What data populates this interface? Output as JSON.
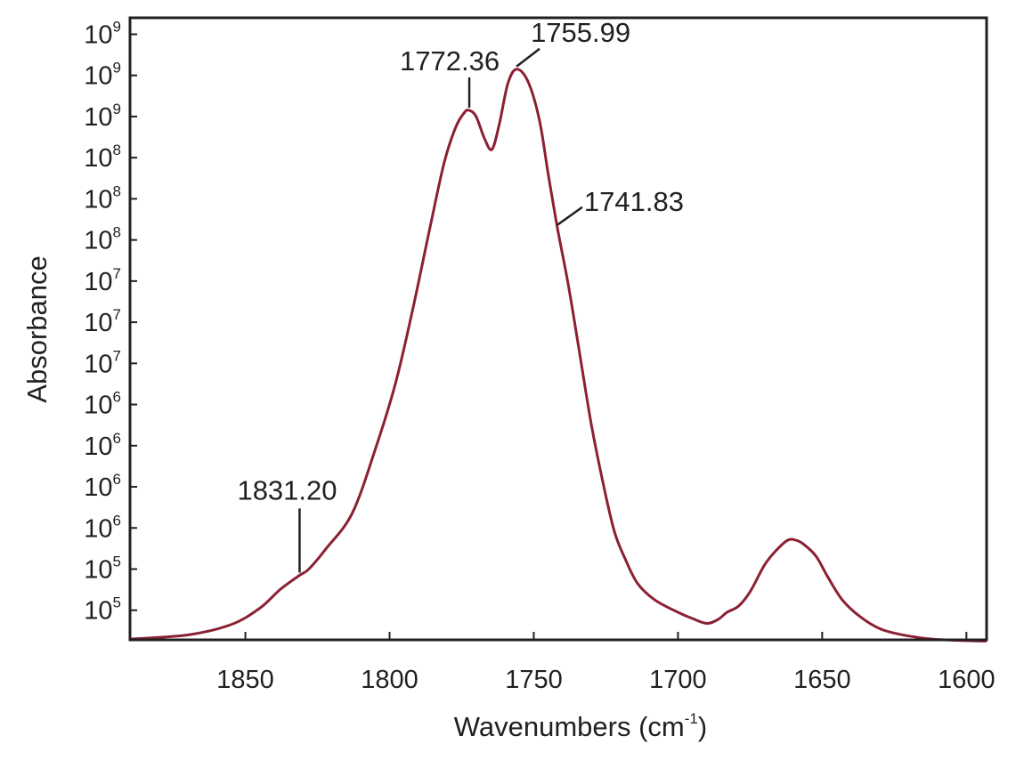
{
  "chart_data": {
    "type": "line",
    "title": "",
    "xlabel": "Wavenumbers (cm",
    "xlabel_sup": "-1",
    "xlabel_close": ")",
    "ylabel": "Absorbance",
    "xlim": [
      1890,
      1593
    ],
    "x_reversed": true,
    "grid": false,
    "x_ticks": [
      1850,
      1800,
      1750,
      1700,
      1650,
      1600
    ],
    "y_tick_labels": [
      {
        "base": "10",
        "exp": "9"
      },
      {
        "base": "10",
        "exp": "9"
      },
      {
        "base": "10",
        "exp": "9"
      },
      {
        "base": "10",
        "exp": "8"
      },
      {
        "base": "10",
        "exp": "8"
      },
      {
        "base": "10",
        "exp": "8"
      },
      {
        "base": "10",
        "exp": "7"
      },
      {
        "base": "10",
        "exp": "7"
      },
      {
        "base": "10",
        "exp": "7"
      },
      {
        "base": "10",
        "exp": "6"
      },
      {
        "base": "10",
        "exp": "6"
      },
      {
        "base": "10",
        "exp": "6"
      },
      {
        "base": "10",
        "exp": "6"
      },
      {
        "base": "10",
        "exp": "5"
      },
      {
        "base": "10",
        "exp": "5"
      }
    ],
    "y_tick_units": [
      15,
      14,
      13,
      12,
      11,
      10,
      9,
      8,
      7,
      6,
      5,
      4,
      3,
      2,
      1
    ],
    "ylim": [
      0.28,
      15.4
    ],
    "line_color": "#8b2033",
    "series": [
      {
        "x": [
          1890,
          1870,
          1855,
          1845,
          1838,
          1831.2,
          1828,
          1822,
          1813,
          1805,
          1798,
          1792,
          1786,
          1781,
          1777,
          1774,
          1772.36,
          1770,
          1767,
          1764.5,
          1762,
          1759,
          1755.99,
          1752,
          1748,
          1745,
          1741.83,
          1738,
          1734,
          1730,
          1726,
          1722,
          1718,
          1714,
          1708,
          1700,
          1695,
          1690,
          1686,
          1683,
          1679,
          1675,
          1670,
          1666,
          1662,
          1659,
          1656,
          1652,
          1648,
          1643,
          1637,
          1630,
          1622,
          1612,
          1600,
          1593
        ],
        "y": [
          0.3,
          0.4,
          0.65,
          1.05,
          1.5,
          1.85,
          2.0,
          2.5,
          3.35,
          4.9,
          6.5,
          8.3,
          10.3,
          11.9,
          12.75,
          13.1,
          13.15,
          13.0,
          12.45,
          12.2,
          12.8,
          13.8,
          14.15,
          13.85,
          12.9,
          11.6,
          10.3,
          8.9,
          7.2,
          5.5,
          4.1,
          2.9,
          2.2,
          1.65,
          1.25,
          0.95,
          0.8,
          0.68,
          0.78,
          0.95,
          1.1,
          1.45,
          2.1,
          2.45,
          2.7,
          2.7,
          2.58,
          2.3,
          1.8,
          1.25,
          0.85,
          0.55,
          0.4,
          0.3,
          0.26,
          0.25
        ]
      }
    ],
    "annotations": [
      {
        "label": "1831.20",
        "x": 1831.2
      },
      {
        "label": "1772.36",
        "x": 1772.36
      },
      {
        "label": "1755.99",
        "x": 1755.99
      },
      {
        "label": "1741.83",
        "x": 1741.83
      }
    ]
  }
}
